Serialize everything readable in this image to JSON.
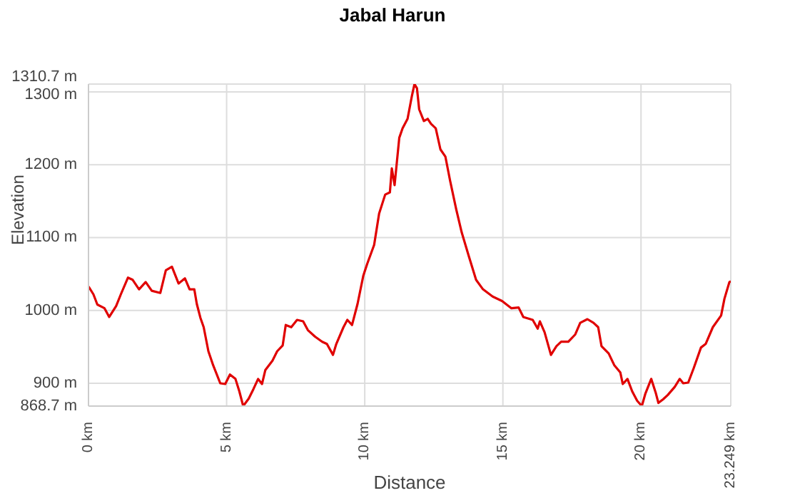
{
  "chart_data": {
    "type": "line",
    "title": "Jabal Harun",
    "xlabel": "Distance",
    "ylabel": "Elevation",
    "x": [
      0,
      0.18,
      0.32,
      0.58,
      0.75,
      1.0,
      1.17,
      1.43,
      1.6,
      1.83,
      2.07,
      2.29,
      2.6,
      2.8,
      3.02,
      3.26,
      3.49,
      3.66,
      3.83,
      3.92,
      4.05,
      4.17,
      4.34,
      4.51,
      4.77,
      4.95,
      5.12,
      5.32,
      5.46,
      5.6,
      5.8,
      5.97,
      6.14,
      6.28,
      6.4,
      6.66,
      6.83,
      7.03,
      7.14,
      7.34,
      7.55,
      7.77,
      7.94,
      8.2,
      8.46,
      8.63,
      8.85,
      8.97,
      9.23,
      9.37,
      9.54,
      9.74,
      9.95,
      10.09,
      10.34,
      10.52,
      10.74,
      10.91,
      10.98,
      11.08,
      11.25,
      11.37,
      11.55,
      11.71,
      11.8,
      11.89,
      11.97,
      12.14,
      12.28,
      12.4,
      12.57,
      12.74,
      12.92,
      13.09,
      13.31,
      13.51,
      13.77,
      14.03,
      14.28,
      14.63,
      14.97,
      15.31,
      15.57,
      15.74,
      16.08,
      16.26,
      16.34,
      16.51,
      16.74,
      16.94,
      17.11,
      17.37,
      17.62,
      17.8,
      18.06,
      18.28,
      18.45,
      18.57,
      18.83,
      19.03,
      19.25,
      19.34,
      19.51,
      19.68,
      19.86,
      20.03,
      20.16,
      20.37,
      20.54,
      20.63,
      20.8,
      20.97,
      21.22,
      21.4,
      21.53,
      21.71,
      21.91,
      22.17,
      22.34,
      22.6,
      22.9,
      23.02,
      23.2,
      23.249
    ],
    "values": [
      1033,
      1022,
      1008,
      1003,
      991,
      1006,
      1022,
      1045,
      1042,
      1029,
      1039,
      1027,
      1024,
      1055,
      1060,
      1037,
      1044,
      1029,
      1029,
      1009,
      990,
      977,
      944,
      925,
      900,
      899,
      912,
      906,
      889,
      868.7,
      879,
      892,
      906,
      899,
      918,
      931,
      944,
      952,
      980,
      977,
      987,
      985,
      973,
      964,
      957,
      954,
      939,
      954,
      977,
      987,
      980,
      1009,
      1048,
      1064,
      1090,
      1133,
      1159,
      1162,
      1195,
      1172,
      1237,
      1250,
      1263,
      1295,
      1310.7,
      1305,
      1276,
      1260,
      1263,
      1256,
      1250,
      1221,
      1211,
      1178,
      1139,
      1107,
      1074,
      1042,
      1029,
      1019,
      1013,
      1003,
      1004,
      991,
      987,
      975,
      985,
      970,
      939,
      951,
      957,
      957,
      967,
      983,
      988,
      983,
      977,
      951,
      941,
      925,
      915,
      899,
      906,
      889,
      876,
      868.7,
      886,
      906,
      886,
      873,
      878,
      884,
      895,
      906,
      900,
      901,
      921,
      949,
      954,
      977,
      993,
      1016,
      1039,
      1040
    ],
    "color": "#e00000",
    "marker": "none",
    "line_style": "solid",
    "grid": true,
    "xlim": [
      0,
      23.249
    ],
    "xticks": [
      {
        "value": 0,
        "label": "0 km"
      },
      {
        "value": 5,
        "label": "5 km"
      },
      {
        "value": 10,
        "label": "10 km"
      },
      {
        "value": 15,
        "label": "15 km"
      },
      {
        "value": 20,
        "label": "20 km"
      },
      {
        "value": 23.249,
        "label": "23.249 km"
      }
    ],
    "ylim": [
      868.7,
      1310.7
    ],
    "yticks": [
      {
        "value": 868.7,
        "label": "868.7 m"
      },
      {
        "value": 900,
        "label": "900 m"
      },
      {
        "value": 1000,
        "label": "1000 m"
      },
      {
        "value": 1100,
        "label": "1100 m"
      },
      {
        "value": 1200,
        "label": "1200 m"
      },
      {
        "value": 1300,
        "label": "1300 m"
      },
      {
        "value": 1310.7,
        "label": "1310.7 m"
      }
    ]
  }
}
